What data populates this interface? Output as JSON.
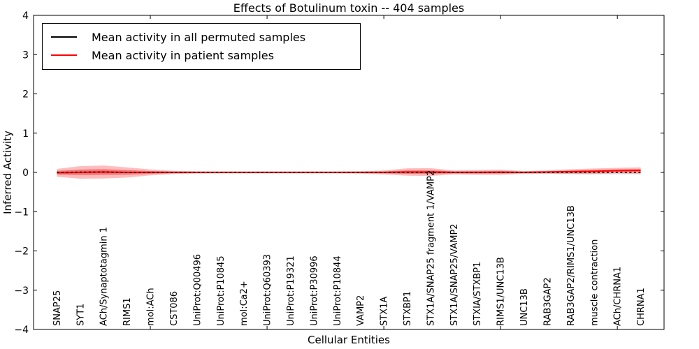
{
  "figure": {
    "title": "Effects of Botulinum toxin -- 404 samples",
    "xlabel": "Cellular Entities",
    "ylabel": "Inferred Activity"
  },
  "legend": {
    "items": [
      {
        "label": "Mean activity in all permuted samples",
        "color": "#000000"
      },
      {
        "label": "Mean activity in patient samples",
        "color": "#ff0000"
      }
    ]
  },
  "chart_data": {
    "type": "line",
    "title": "Effects of Botulinum toxin -- 404 samples",
    "xlabel": "Cellular Entities",
    "ylabel": "Inferred Activity",
    "ylim": [
      -4,
      4
    ],
    "yticks": [
      4,
      3,
      2,
      1,
      0,
      -1,
      -2,
      -3,
      -4
    ],
    "xtick_positions": [
      5,
      10,
      15,
      20,
      25
    ],
    "grid": false,
    "legend_position": "upper left",
    "categories": [
      "SNAP25",
      "SYT1",
      "ACh/Synaptotagmin 1",
      "RIMS1",
      "mol:ACh",
      "CST086",
      "UniProt:Q00496",
      "UniProt:P10845",
      "mol:Ca2+",
      "UniProt:Q60393",
      "UniProt:P19321",
      "UniProt:P30996",
      "UniProt:P10844",
      "VAMP2",
      "STX1A",
      "STXBP1",
      "STX1A/SNAP25 fragment 1/VAMP2",
      "STX1A/SNAP25/VAMP2",
      "STXIA/STXBP1",
      "RIMS1/UNC13B",
      "UNC13B",
      "RAB3GAP2",
      "RAB3GAP2/RIMS1/UNC13B",
      "muscle contraction",
      "ACh/CHRNA1",
      "CHRNA1"
    ],
    "series": [
      {
        "name": "Mean activity in all permuted samples",
        "color": "#000000",
        "band_color": "#888888",
        "values": [
          0,
          0.01,
          0.01,
          0,
          0,
          0,
          0,
          0,
          0,
          0,
          0,
          0,
          0,
          0,
          0,
          0,
          0,
          0,
          0,
          0,
          0,
          0,
          0,
          0,
          0,
          0
        ],
        "band_halfwidth": [
          0.05,
          0.065,
          0.065,
          0.055,
          0.04,
          0.03,
          0.025,
          0.025,
          0.025,
          0.025,
          0.025,
          0.025,
          0.025,
          0.025,
          0.03,
          0.04,
          0.045,
          0.035,
          0.04,
          0.04,
          0.03,
          0.035,
          0.045,
          0.05,
          0.05,
          0.055
        ]
      },
      {
        "name": "Mean activity in patient samples",
        "color": "#ff0000",
        "band_color": "#ff0000",
        "values": [
          -0.01,
          0,
          0.01,
          0,
          0,
          0,
          0,
          0,
          0,
          0,
          0,
          0,
          0,
          0,
          0,
          0.01,
          0.01,
          0,
          0,
          0.005,
          0,
          0.01,
          0.02,
          0.03,
          0.045,
          0.05
        ],
        "band_halfwidth": [
          0.1,
          0.16,
          0.165,
          0.13,
          0.075,
          0.04,
          0.028,
          0.025,
          0.025,
          0.025,
          0.025,
          0.025,
          0.025,
          0.03,
          0.05,
          0.095,
          0.1,
          0.05,
          0.06,
          0.065,
          0.035,
          0.04,
          0.06,
          0.07,
          0.07,
          0.08
        ]
      }
    ]
  }
}
